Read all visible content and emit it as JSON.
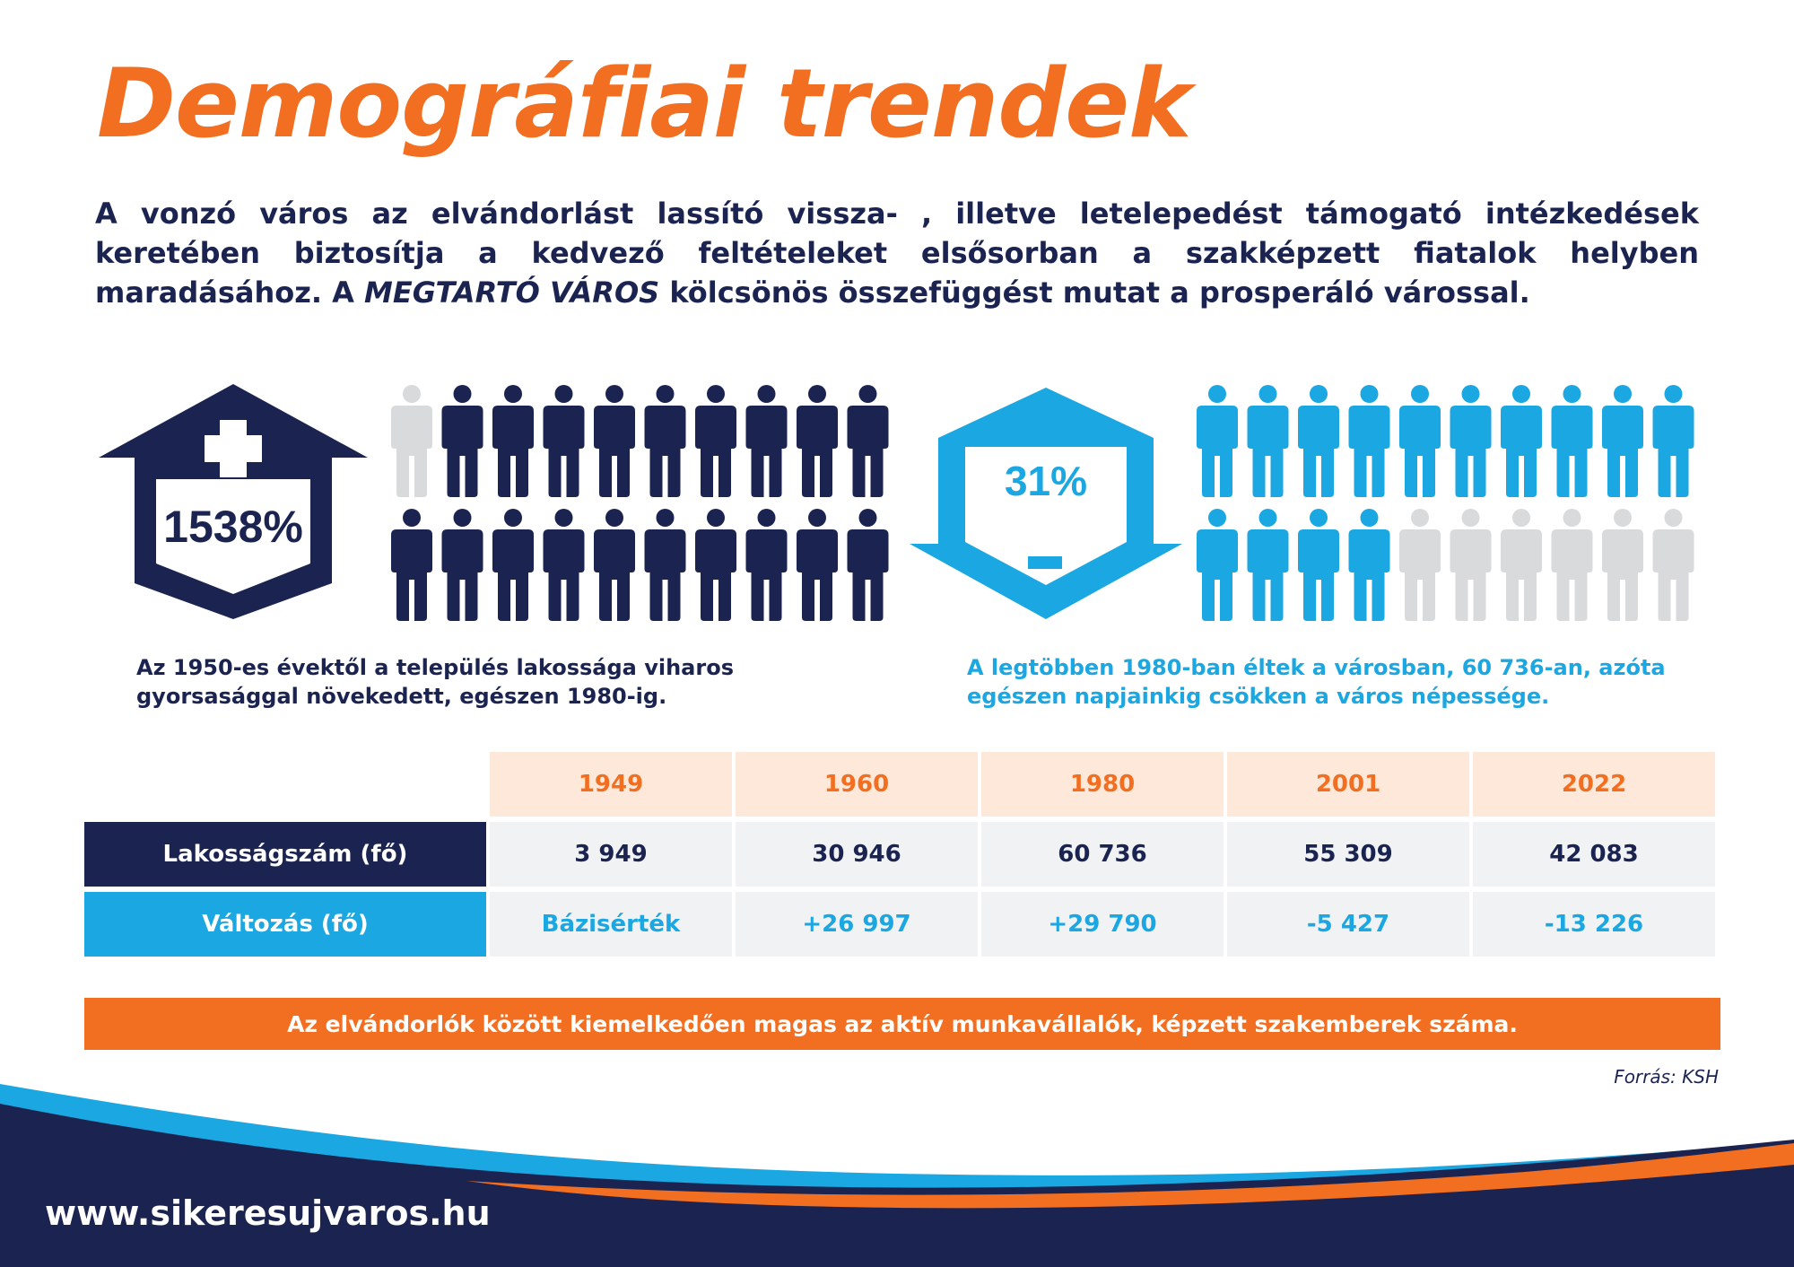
{
  "title": "Demográfiai trendek",
  "intro": {
    "part1": "A vonzó város az elvándorlást lassító vissza- , illetve letelepedést támogató intézkedések keretében biztosítja a kedvező feltételeket elsősorban a szakképzett fiatalok helyben maradásához. A ",
    "emphasis": "MEGTARTÓ VÁROS",
    "part2": " kölcsönös összefüggést mutat a prosperáló várossal."
  },
  "growth": {
    "percent": "1538%",
    "people_total": 20,
    "people_gray": 1,
    "caption": "Az 1950-es évektől a település lakossága viharos gyorsasággal növekedett, egészen 1980-ig."
  },
  "decline": {
    "percent": "31%",
    "people_total": 20,
    "people_gray": 6,
    "caption": "A legtöbben 1980-ban éltek a városban, 60 736-an, azóta egészen napjainkig csökken a város népessége."
  },
  "table": {
    "years": [
      "1949",
      "1960",
      "1980",
      "2001",
      "2022"
    ],
    "rows": [
      {
        "label": "Lakosságszám (fő)",
        "values": [
          "3 949",
          "30 946",
          "60 736",
          "55 309",
          "42 083"
        ]
      },
      {
        "label": "Változás (fő)",
        "values": [
          "Bázisérték",
          "+26 997",
          "+29 790",
          "-5 427",
          "-13 226"
        ]
      }
    ]
  },
  "banner": "Az elvándorlók között kiemelkedően magas az aktív munkavállalók, képzett szakemberek száma.",
  "source": "Forrás: KSH",
  "url": "www.sikeresujvaros.hu",
  "colors": {
    "orange": "#f26f21",
    "navy": "#1b2450",
    "blue": "#1ba7e1",
    "gray": "#d9dadc",
    "light_orange": "#fde8d9"
  }
}
